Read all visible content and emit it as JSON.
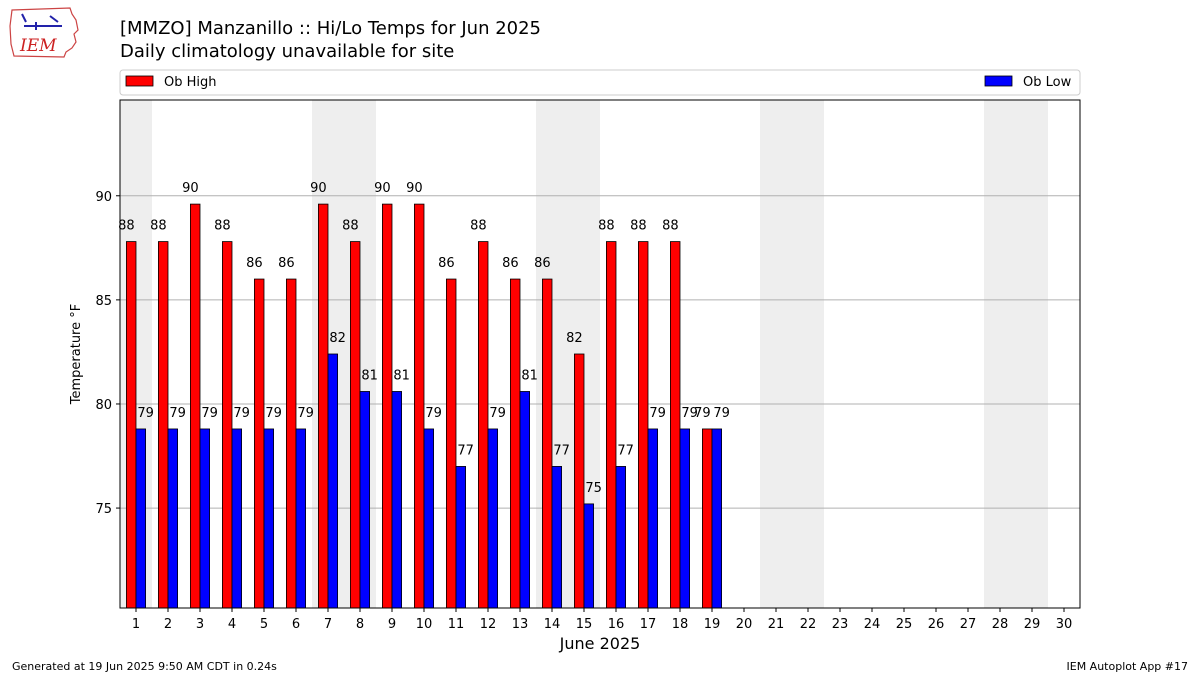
{
  "logo": {
    "text": "IEM"
  },
  "title": "[MMZO] Manzanillo :: Hi/Lo Temps for Jun 2025",
  "subtitle": "Daily climatology unavailable for site",
  "footer": {
    "left": "Generated at 19 Jun 2025 9:50 AM CDT in 0.24s",
    "right": "IEM Autoplot App #17"
  },
  "colors": {
    "high": "#ff0000",
    "low": "#0000ff",
    "weekend_shade": "#eeeeee",
    "grid": "#b0b0b0"
  },
  "chart_data": {
    "type": "bar",
    "xlabel": "June 2025",
    "ylabel": "Temperature °F",
    "ylim": [
      70.2,
      94.6
    ],
    "yticks": [
      75,
      80,
      85,
      90
    ],
    "grid": "horizontal",
    "legend": "top, above plot",
    "categories": [
      "1",
      "2",
      "3",
      "4",
      "5",
      "6",
      "7",
      "8",
      "9",
      "10",
      "11",
      "12",
      "13",
      "14",
      "15",
      "16",
      "17",
      "18",
      "19",
      "20",
      "21",
      "22",
      "23",
      "24",
      "25",
      "26",
      "27",
      "28",
      "29",
      "30"
    ],
    "shaded_days": [
      1,
      7,
      8,
      14,
      15,
      21,
      22,
      28,
      29
    ],
    "series": [
      {
        "name": "Ob High",
        "values": [
          87.8,
          87.8,
          89.6,
          87.8,
          86.0,
          86.0,
          89.6,
          87.8,
          89.6,
          89.6,
          86.0,
          87.8,
          86.0,
          86.0,
          82.4,
          87.8,
          87.8,
          87.8,
          78.8,
          null,
          null,
          null,
          null,
          null,
          null,
          null,
          null,
          null,
          null,
          null
        ],
        "labels": [
          "88",
          "88",
          "90",
          "88",
          "86",
          "86",
          "90",
          "88",
          "90",
          "90",
          "86",
          "88",
          "86",
          "86",
          "82",
          "88",
          "88",
          "88",
          "79",
          "",
          "",
          "",
          "",
          "",
          "",
          "",
          "",
          "",
          "",
          ""
        ]
      },
      {
        "name": "Ob Low",
        "values": [
          78.8,
          78.8,
          78.8,
          78.8,
          78.8,
          78.8,
          82.4,
          80.6,
          80.6,
          78.8,
          77.0,
          78.8,
          80.6,
          77.0,
          75.2,
          77.0,
          78.8,
          78.8,
          78.8,
          null,
          null,
          null,
          null,
          null,
          null,
          null,
          null,
          null,
          null,
          null
        ],
        "labels": [
          "79",
          "79",
          "79",
          "79",
          "79",
          "79",
          "82",
          "81",
          "81",
          "79",
          "77",
          "79",
          "81",
          "77",
          "75",
          "77",
          "79",
          "79",
          "79",
          "",
          "",
          "",
          "",
          "",
          "",
          "",
          "",
          "",
          "",
          ""
        ]
      }
    ]
  }
}
